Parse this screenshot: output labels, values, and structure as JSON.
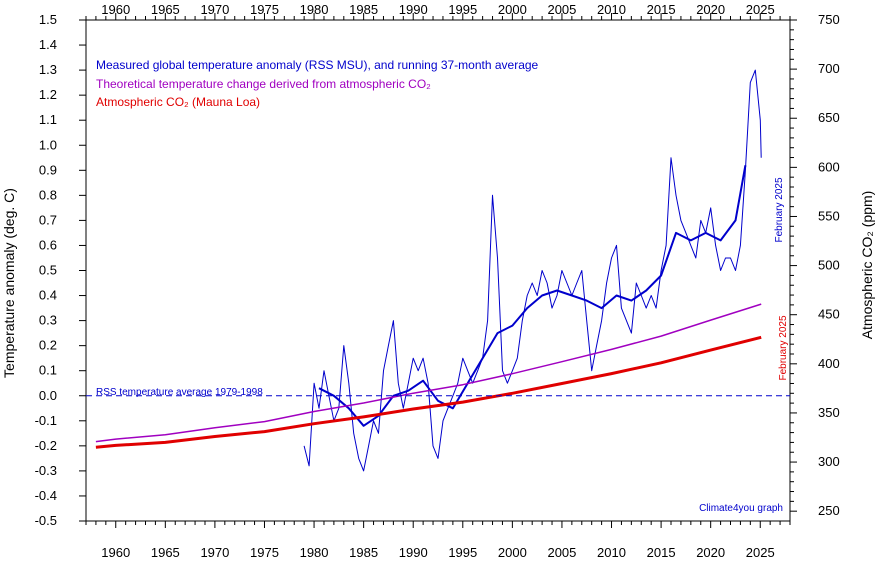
{
  "chart_data": {
    "type": "line",
    "x_axis": {
      "range": [
        1957,
        2028
      ],
      "ticks": [
        1960,
        1965,
        1970,
        1975,
        1980,
        1985,
        1990,
        1995,
        2000,
        2005,
        2010,
        2015,
        2020,
        2025
      ]
    },
    "y_left": {
      "label": "Temperature anomaly (deg. C)",
      "range": [
        -0.5,
        1.5
      ],
      "ticks": [
        "-0.5",
        "-0.4",
        "-0.3",
        "-0.2",
        "-0.1",
        "0.0",
        "0.1",
        "0.2",
        "0.3",
        "0.4",
        "0.5",
        "0.6",
        "0.7",
        "0.8",
        "0.9",
        "1.0",
        "1.1",
        "1.2",
        "1.3",
        "1.4",
        "1.5"
      ]
    },
    "y_right": {
      "label": "Atmospheric CO₂ (ppm)",
      "range": [
        240,
        750
      ],
      "ticks": [
        250,
        300,
        350,
        400,
        450,
        500,
        550,
        600,
        650,
        700,
        750
      ]
    },
    "legend": [
      {
        "text": "Measured global temperature anomaly (RSS MSU), and running 37-month average",
        "color": "#0000cc"
      },
      {
        "text": "Theoretical temperature change derived from atmospheric CO₂",
        "color": "#a000c0"
      },
      {
        "text": "Atmospheric CO₂ (Mauna Loa)",
        "color": "#e00000"
      }
    ],
    "legend_position": "top-left",
    "reference_line": {
      "label": "RSS temperature average 1979-1998",
      "y": 0.0,
      "color": "#0000cc"
    },
    "annotations": [
      {
        "text": "February 2025",
        "color": "#0000cc"
      },
      {
        "text": "February 2025",
        "color": "#e00000"
      },
      {
        "text": "Climate4you graph",
        "color": "#0000cc"
      }
    ],
    "series": [
      {
        "name": "Measured global temperature anomaly (RSS MSU)",
        "axis": "left",
        "color": "#0000cc",
        "x": [
          1979.0,
          1979.5,
          1980.0,
          1980.5,
          1981.0,
          1981.5,
          1982.0,
          1982.5,
          1983.0,
          1983.5,
          1984.0,
          1984.5,
          1985.0,
          1985.5,
          1986.0,
          1986.5,
          1987.0,
          1987.5,
          1988.0,
          1988.5,
          1989.0,
          1989.5,
          1990.0,
          1990.5,
          1991.0,
          1991.5,
          1992.0,
          1992.5,
          1993.0,
          1993.5,
          1994.0,
          1994.5,
          1995.0,
          1995.5,
          1996.0,
          1996.5,
          1997.0,
          1997.5,
          1998.0,
          1998.5,
          1999.0,
          1999.5,
          2000.0,
          2000.5,
          2001.0,
          2001.5,
          2002.0,
          2002.5,
          2003.0,
          2003.5,
          2004.0,
          2004.5,
          2005.0,
          2005.5,
          2006.0,
          2006.5,
          2007.0,
          2007.5,
          2008.0,
          2008.5,
          2009.0,
          2009.5,
          2010.0,
          2010.5,
          2011.0,
          2011.5,
          2012.0,
          2012.5,
          2013.0,
          2013.5,
          2014.0,
          2014.5,
          2015.0,
          2015.5,
          2016.0,
          2016.5,
          2017.0,
          2017.5,
          2018.0,
          2018.5,
          2019.0,
          2019.5,
          2020.0,
          2020.5,
          2021.0,
          2021.5,
          2022.0,
          2022.5,
          2023.0,
          2023.5,
          2024.0,
          2024.5,
          2025.0,
          2025.1
        ],
        "y": [
          -0.2,
          -0.28,
          0.05,
          -0.05,
          0.1,
          0.0,
          -0.1,
          -0.05,
          0.2,
          0.05,
          -0.15,
          -0.25,
          -0.3,
          -0.2,
          -0.1,
          -0.15,
          0.1,
          0.2,
          0.3,
          0.05,
          -0.05,
          0.05,
          0.15,
          0.1,
          0.15,
          0.05,
          -0.2,
          -0.25,
          -0.1,
          -0.05,
          0.0,
          0.05,
          0.15,
          0.1,
          0.05,
          0.1,
          0.15,
          0.3,
          0.8,
          0.55,
          0.1,
          0.05,
          0.1,
          0.15,
          0.3,
          0.4,
          0.45,
          0.4,
          0.5,
          0.45,
          0.35,
          0.4,
          0.5,
          0.45,
          0.4,
          0.45,
          0.5,
          0.3,
          0.1,
          0.2,
          0.3,
          0.45,
          0.55,
          0.6,
          0.35,
          0.3,
          0.25,
          0.45,
          0.4,
          0.35,
          0.4,
          0.35,
          0.5,
          0.6,
          0.95,
          0.8,
          0.7,
          0.65,
          0.6,
          0.55,
          0.7,
          0.65,
          0.75,
          0.6,
          0.5,
          0.55,
          0.55,
          0.5,
          0.6,
          0.9,
          1.25,
          1.3,
          1.1,
          0.95
        ]
      },
      {
        "name": "Running 37-month average",
        "axis": "left",
        "color": "#0000cc",
        "x": [
          1980.5,
          1982,
          1983.5,
          1985,
          1986.5,
          1988,
          1989.5,
          1991,
          1992.5,
          1994,
          1995.5,
          1997,
          1998.5,
          2000,
          2001.5,
          2003,
          2004.5,
          2006,
          2007.5,
          2009,
          2010.5,
          2012,
          2013.5,
          2015,
          2016.5,
          2018,
          2019.5,
          2021,
          2022.5,
          2023.5
        ],
        "y": [
          0.03,
          0.0,
          -0.05,
          -0.12,
          -0.08,
          0.0,
          0.02,
          0.06,
          -0.02,
          -0.05,
          0.05,
          0.15,
          0.25,
          0.28,
          0.35,
          0.4,
          0.42,
          0.4,
          0.38,
          0.35,
          0.4,
          0.38,
          0.42,
          0.48,
          0.65,
          0.62,
          0.65,
          0.62,
          0.7,
          0.92
        ]
      },
      {
        "name": "Atmospheric CO₂ (Mauna Loa)",
        "axis": "right",
        "color": "#e00000",
        "x": [
          1958,
          1960,
          1965,
          1970,
          1975,
          1980,
          1985,
          1990,
          1995,
          2000,
          2005,
          2010,
          2015,
          2020,
          2025.1
        ],
        "y": [
          315,
          317,
          320,
          326,
          331,
          339,
          346,
          354,
          361,
          370,
          380,
          390,
          401,
          414,
          427
        ]
      },
      {
        "name": "Theoretical temperature change derived from atmospheric CO₂",
        "axis": "left",
        "color": "#a000c0",
        "x": [
          1958,
          1960,
          1965,
          1970,
          1975,
          1980,
          1985,
          1990,
          1995,
          2000,
          2005,
          2010,
          2015,
          2020,
          2025.1
        ],
        "y": [
          -0.183,
          -0.173,
          -0.156,
          -0.128,
          -0.103,
          -0.063,
          -0.029,
          0.01,
          0.044,
          0.088,
          0.136,
          0.185,
          0.238,
          0.302,
          0.366
        ]
      }
    ]
  }
}
